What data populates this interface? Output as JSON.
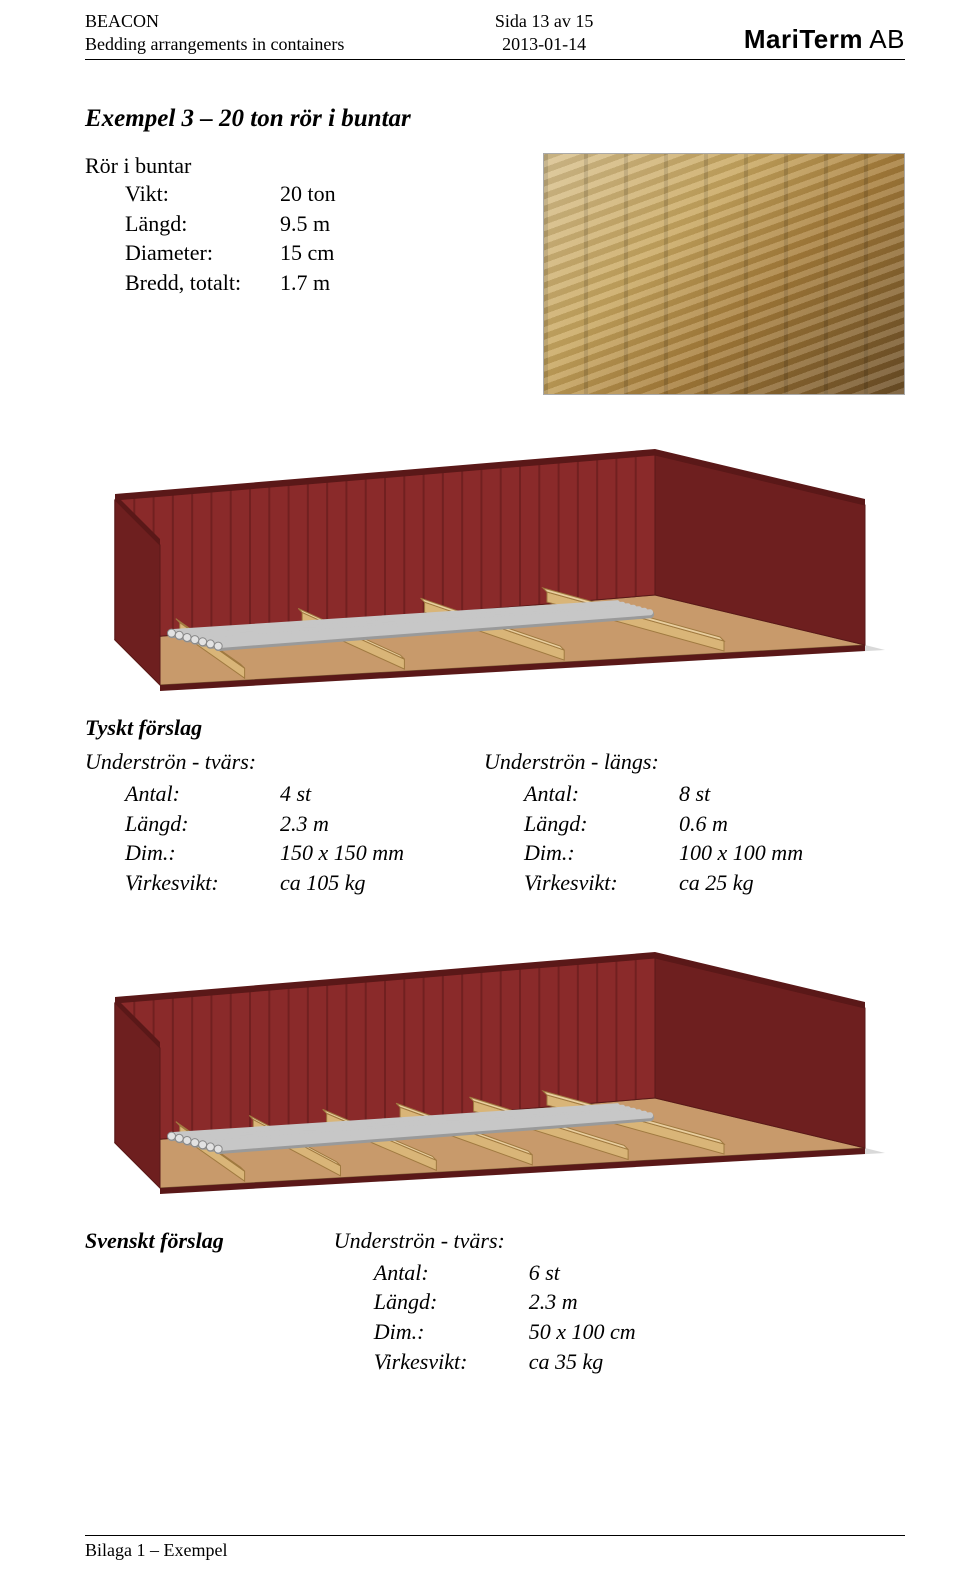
{
  "header": {
    "left_line1": "BEACON",
    "left_line2": "Bedding arrangements in containers",
    "center_line1": "Sida 13 av 15",
    "center_line2": "2013-01-14",
    "brand_main": "MariTerm",
    "brand_suffix": " AB"
  },
  "title": "Exempel 3 – 20 ton rör i buntar",
  "intro": {
    "heading": "Rör i buntar",
    "rows": [
      {
        "label": "Vikt:",
        "value": "20 ton"
      },
      {
        "label": "Längd:",
        "value": "9.5 m"
      },
      {
        "label": "Diameter:",
        "value": "15 cm"
      },
      {
        "label": "Bredd, totalt:",
        "value": "1.7 m"
      }
    ]
  },
  "illustration": {
    "colors": {
      "container_outer": "#6e1f1f",
      "container_inner": "#8a2a2a",
      "container_stripe": "#5a1818",
      "floor": "#c89a6b",
      "pipe": "#c7c7c7",
      "pipe_shade": "#9a9a9a",
      "timber": "#d9b578",
      "shadow": "#bfbfbf"
    },
    "pipes_count": 7,
    "tvars_beams_german": 4,
    "tvars_beams_swedish": 6
  },
  "german": {
    "heading": "Tyskt förslag",
    "tvars": {
      "heading": "Underströn - tvärs:",
      "rows": [
        {
          "label": "Antal:",
          "value": "4 st"
        },
        {
          "label": "Längd:",
          "value": "2.3 m"
        },
        {
          "label": "Dim.:",
          "value": "150 x 150 mm"
        },
        {
          "label": "Virkesvikt:",
          "value": "ca 105 kg"
        }
      ]
    },
    "langs": {
      "heading": "Underströn - längs:",
      "rows": [
        {
          "label": "Antal:",
          "value": "8 st"
        },
        {
          "label": "Längd:",
          "value": "0.6 m"
        },
        {
          "label": "Dim.:",
          "value": "100 x 100 mm"
        },
        {
          "label": "Virkesvikt:",
          "value": "ca 25 kg"
        }
      ]
    }
  },
  "swedish": {
    "heading": "Svenskt förslag",
    "tvars": {
      "heading": "Underströn - tvärs:",
      "rows": [
        {
          "label": "Antal:",
          "value": "6 st"
        },
        {
          "label": "Längd:",
          "value": "2.3 m"
        },
        {
          "label": "Dim.:",
          "value": "50 x 100 cm"
        },
        {
          "label": "Virkesvikt:",
          "value": "ca 35 kg"
        }
      ]
    }
  },
  "footer": {
    "text": "Bilaga 1 – Exempel"
  }
}
